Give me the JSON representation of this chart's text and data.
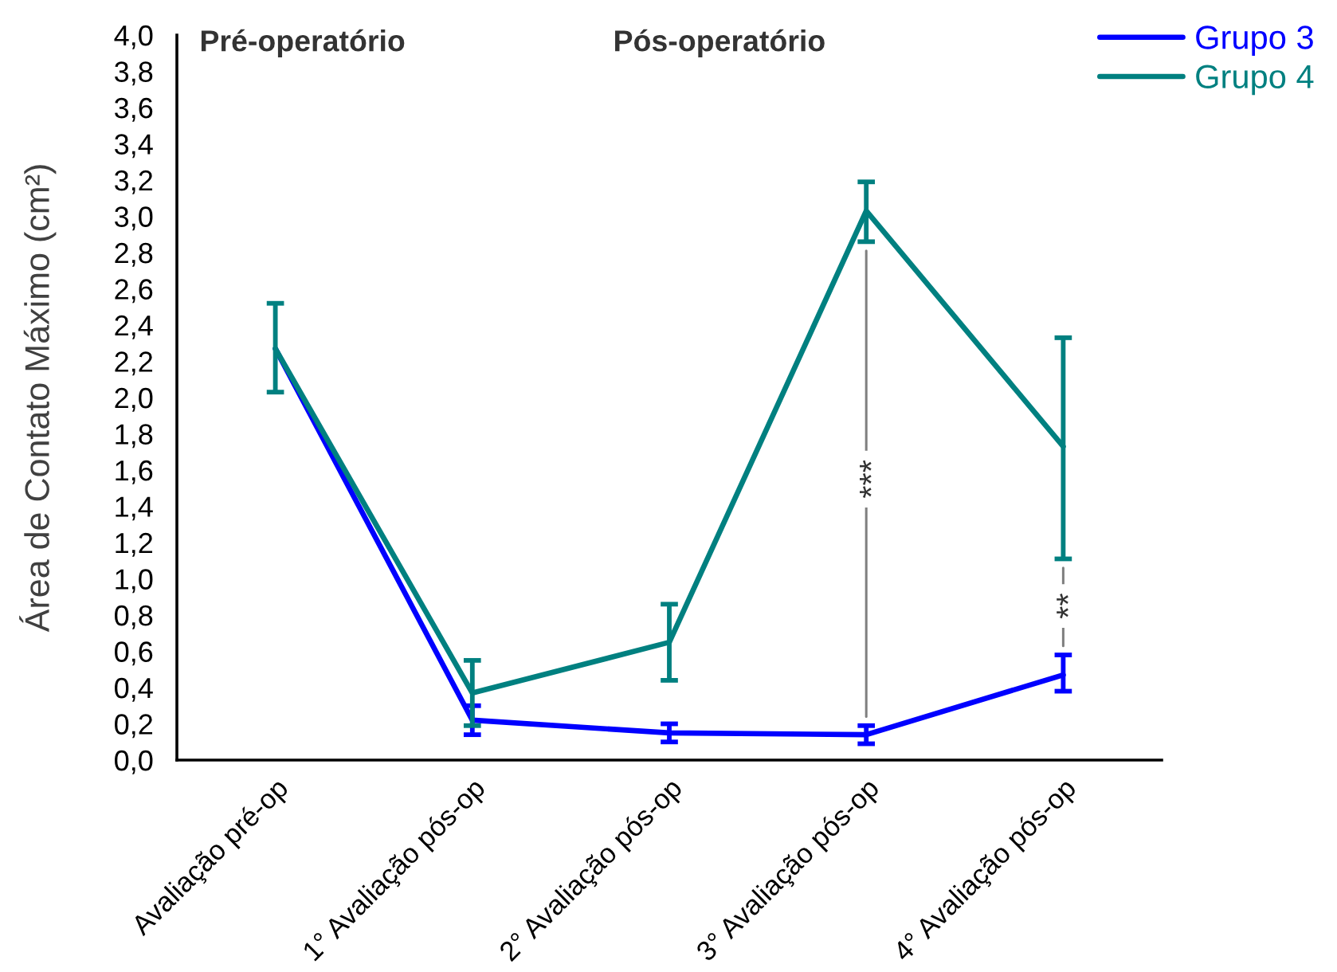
{
  "chart_data": {
    "type": "line",
    "ylabel": "Área de Contato Máximo (cm²)",
    "categories": [
      "Avaliação pré-op",
      "1° Avaliação pós-op",
      "2° Avaliação pós-op",
      "3° Avaliação pós-op",
      "4° Avaliação pós-op"
    ],
    "series": [
      {
        "name": "Grupo 3",
        "color": "#0000ff",
        "values": [
          2.27,
          0.22,
          0.15,
          0.14,
          0.47
        ],
        "errors": [
          null,
          [
            0.14,
            0.3
          ],
          [
            0.1,
            0.2
          ],
          [
            0.09,
            0.19
          ],
          [
            0.38,
            0.58
          ]
        ]
      },
      {
        "name": "Grupo 4",
        "color": "#008080",
        "values": [
          2.27,
          0.37,
          0.65,
          3.03,
          1.73
        ],
        "errors": [
          [
            2.03,
            2.52
          ],
          [
            0.19,
            0.55
          ],
          [
            0.44,
            0.86
          ],
          [
            2.86,
            3.19
          ],
          [
            1.11,
            2.33
          ]
        ]
      }
    ],
    "ylim": [
      0,
      4
    ],
    "yticks": [
      {
        "value": 0,
        "label": "0,0"
      },
      {
        "value": 0.2,
        "label": "0,2"
      },
      {
        "value": 0.4,
        "label": "0,4"
      },
      {
        "value": 0.6,
        "label": "0,6"
      },
      {
        "value": 0.8,
        "label": "0,8"
      },
      {
        "value": 1,
        "label": "1,0"
      },
      {
        "value": 1.2,
        "label": "1,2"
      },
      {
        "value": 1.4,
        "label": "1,4"
      },
      {
        "value": 1.6,
        "label": "1,6"
      },
      {
        "value": 1.8,
        "label": "1,8"
      },
      {
        "value": 2,
        "label": "2,0"
      },
      {
        "value": 2.2,
        "label": "2,2"
      },
      {
        "value": 2.4,
        "label": "2,4"
      },
      {
        "value": 2.6,
        "label": "2,6"
      },
      {
        "value": 2.8,
        "label": "2,8"
      },
      {
        "value": 3,
        "label": "3,0"
      },
      {
        "value": 3.2,
        "label": "3,2"
      },
      {
        "value": 3.4,
        "label": "3,4"
      },
      {
        "value": 3.6,
        "label": "3,6"
      },
      {
        "value": 3.8,
        "label": "3,8"
      },
      {
        "value": 4,
        "label": "4,0"
      }
    ],
    "legend": "top right",
    "marker": "none",
    "line_style": "solid",
    "grid": false,
    "annotations": [
      "Pré-operatório",
      "Pós-operatório",
      "***",
      "**"
    ]
  }
}
